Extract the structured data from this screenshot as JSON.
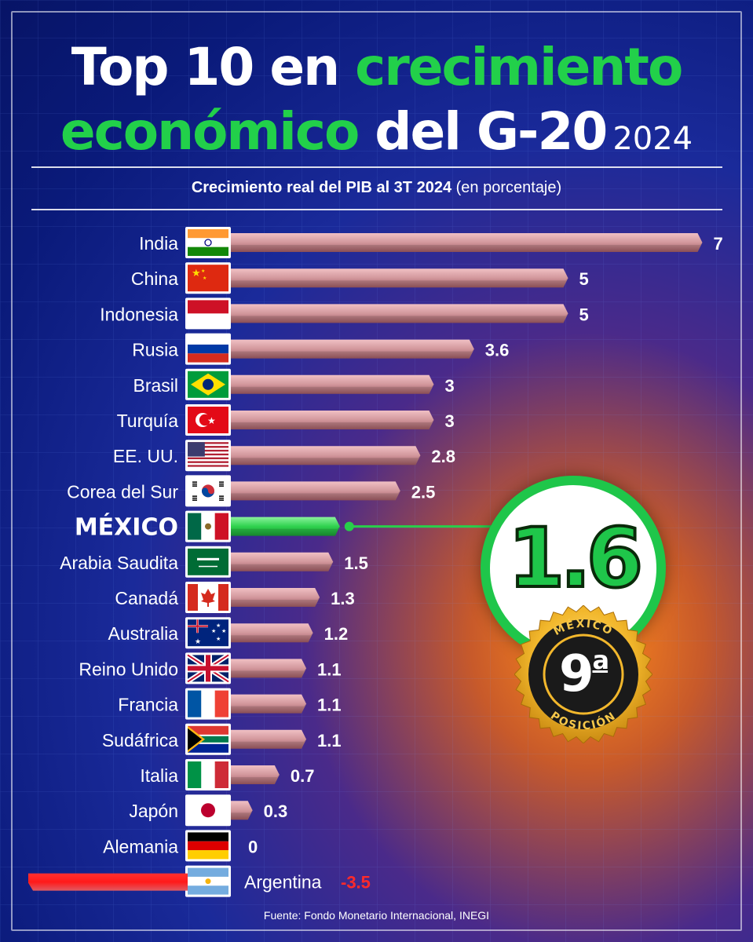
{
  "title": {
    "line1_white": "Top 10 en",
    "line1_green": "crecimiento",
    "line2_green": "económico",
    "line2_white": "del G-20",
    "year": "2024"
  },
  "subtitle_bold": "Crecimiento real del PIB al 3T 2024",
  "subtitle_rest": "(en porcentaje)",
  "source": "Fuente: Fondo Monetario Internacional, INEGI",
  "highlight": {
    "value_text": "1.6",
    "seal_top": "MÉXICO",
    "seal_bottom": "POSICIÓN",
    "rank": "9",
    "rank_suffix": "a"
  },
  "colors": {
    "bar": "#d89a9e",
    "bar_highlight": "#28cf4a",
    "bar_negative": "#ff1a1a",
    "accent_green": "#22d04a"
  },
  "chart_data": {
    "type": "bar",
    "orientation": "horizontal",
    "title": "Top 10 en crecimiento económico del G-20 2024",
    "subtitle": "Crecimiento real del PIB al 3T 2024 (en porcentaje)",
    "categories": [
      "India",
      "China",
      "Indonesia",
      "Rusia",
      "Brasil",
      "Turquía",
      "EE. UU.",
      "Corea del Sur",
      "MÉXICO",
      "Arabia Saudita",
      "Canadá",
      "Australia",
      "Reino Unido",
      "Francia",
      "Sudáfrica",
      "Italia",
      "Japón",
      "Alemania",
      "Argentina"
    ],
    "values": [
      7,
      5,
      5,
      3.6,
      3,
      3,
      2.8,
      2.5,
      1.6,
      1.5,
      1.3,
      1.2,
      1.1,
      1.1,
      1.1,
      0.7,
      0.3,
      0,
      -3.5
    ],
    "value_labels": [
      "7",
      "5",
      "5",
      "3.6",
      "3",
      "3",
      "2.8",
      "2.5",
      "",
      "1.5",
      "1.3",
      "1.2",
      "1.1",
      "1.1",
      "1.1",
      "0.7",
      "0.3",
      "0",
      "-3.5"
    ],
    "highlight_category": "MÉXICO",
    "flags": [
      "india",
      "china",
      "indonesia",
      "russia",
      "brazil",
      "turkey",
      "usa",
      "south-korea",
      "mexico",
      "saudi-arabia",
      "canada",
      "australia",
      "uk",
      "france",
      "south-africa",
      "italy",
      "japan",
      "germany",
      "argentina"
    ],
    "grid": false,
    "legend": "none"
  }
}
